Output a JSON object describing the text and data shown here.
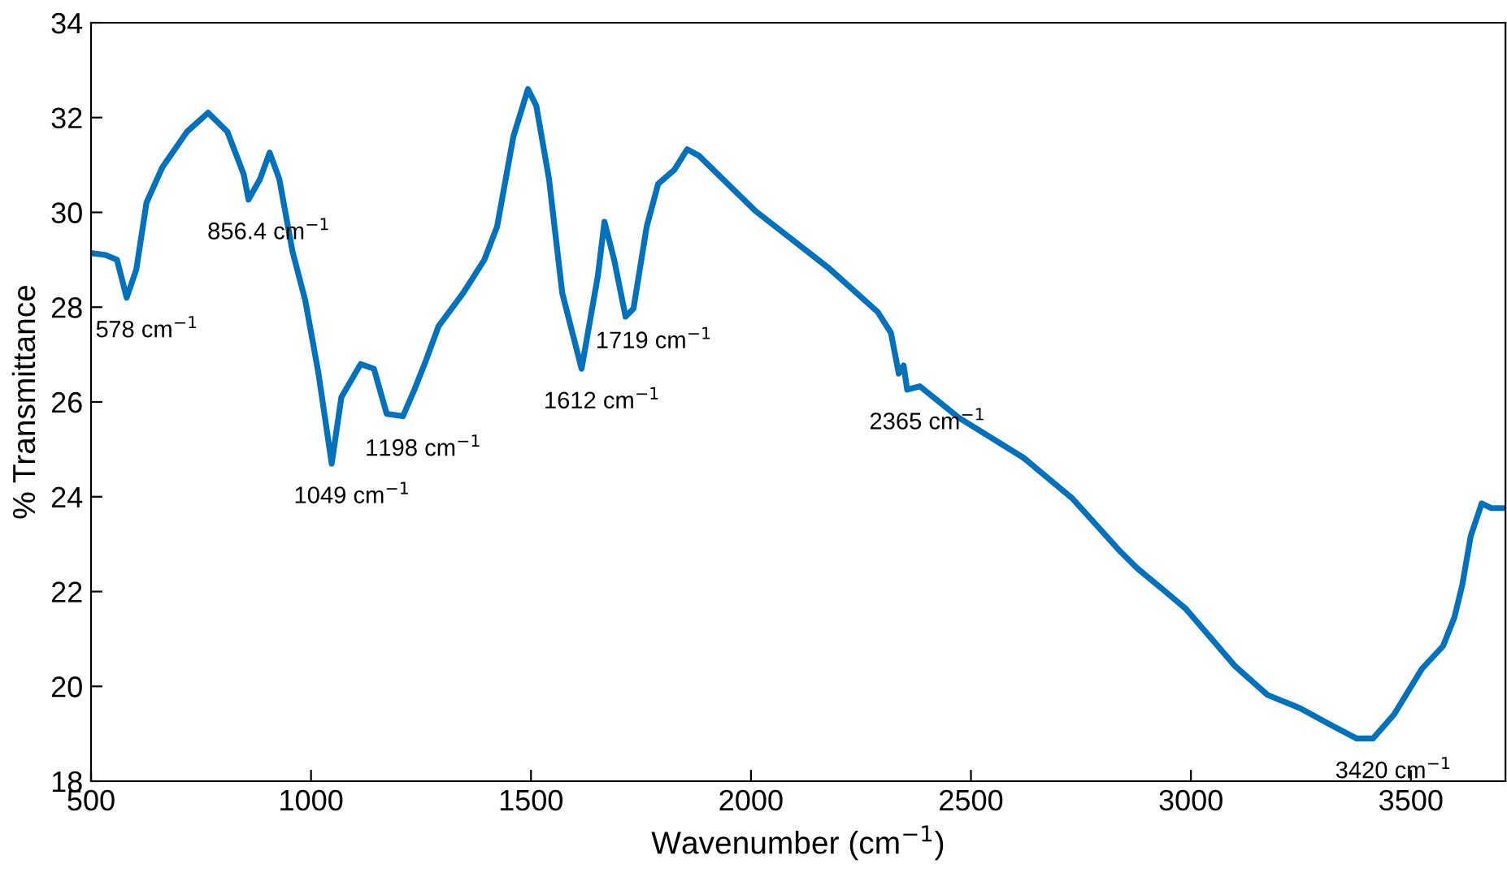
{
  "chart_data": {
    "type": "line",
    "xlabel": "Wavenumber (cm$^{−1}$)",
    "ylabel": "% Transmittance",
    "xlim": [
      500,
      3715
    ],
    "xticks": [
      500,
      1000,
      1500,
      2000,
      2500,
      3000,
      3500
    ],
    "ylim": [
      18,
      34
    ],
    "yticks": [
      18,
      20,
      22,
      24,
      26,
      28,
      30,
      32,
      34
    ],
    "grid": false,
    "legend": false,
    "line_style": "solid",
    "marker": "none",
    "x": [
      500,
      533,
      559,
      581,
      603,
      626,
      662,
      677,
      718,
      766,
      810,
      847,
      858,
      884,
      906,
      928,
      958,
      987,
      1017,
      1047,
      1069,
      1113,
      1143,
      1172,
      1209,
      1235,
      1261,
      1290,
      1346,
      1394,
      1423,
      1460,
      1493,
      1512,
      1541,
      1571,
      1615,
      1652,
      1667,
      1689,
      1715,
      1733,
      1763,
      1789,
      1826,
      1855,
      1881,
      2010,
      2176,
      2288,
      2318,
      2336,
      2347,
      2355,
      2384,
      2472,
      2620,
      2731,
      2841,
      2878,
      2937,
      2989,
      3100,
      3174,
      3248,
      3321,
      3377,
      3414,
      3462,
      3525,
      3573,
      3599,
      3617,
      3636,
      3661,
      3683,
      3713
    ],
    "series": [
      {
        "color": "#0072bd",
        "values": [
          29.14,
          29.1,
          29.0,
          28.2,
          28.8,
          30.2,
          30.95,
          31.15,
          31.7,
          32.1,
          31.7,
          30.8,
          30.27,
          30.7,
          31.26,
          30.7,
          29.17,
          28.14,
          26.6,
          24.7,
          26.1,
          26.8,
          26.7,
          25.75,
          25.7,
          26.26,
          26.87,
          27.6,
          28.3,
          29.0,
          29.7,
          31.6,
          32.6,
          32.25,
          30.7,
          28.3,
          26.7,
          28.66,
          29.8,
          29.0,
          27.8,
          27.97,
          29.7,
          30.6,
          30.9,
          31.33,
          31.2,
          30.03,
          28.83,
          27.9,
          27.46,
          26.6,
          26.77,
          26.26,
          26.33,
          25.67,
          24.82,
          23.96,
          22.83,
          22.49,
          22.04,
          21.63,
          20.43,
          19.82,
          19.54,
          19.17,
          18.9,
          18.9,
          19.41,
          20.37,
          20.85,
          21.46,
          22.15,
          23.17,
          23.86,
          23.76,
          23.76
        ]
      }
    ],
    "annotations": [
      {
        "text": "578 cm$^{−1}$",
        "x": 581,
        "y": 28.2
      },
      {
        "text": "856.4 cm$^{−1}$",
        "x": 858,
        "y": 30.27
      },
      {
        "text": "1049 cm$^{−1}$",
        "x": 1047,
        "y": 24.7
      },
      {
        "text": "1198 cm$^{−1}$",
        "x": 1209,
        "y": 25.7
      },
      {
        "text": "1612 cm$^{−1}$",
        "x": 1615,
        "y": 26.7
      },
      {
        "text": "1719 cm$^{−1}$",
        "x": 1733,
        "y": 27.97
      },
      {
        "text": "2365 cm$^{−1}$",
        "x": 2355,
        "y": 26.26
      },
      {
        "text": "3420 cm$^{−1}$",
        "x": 3414,
        "y": 18.9
      }
    ]
  }
}
